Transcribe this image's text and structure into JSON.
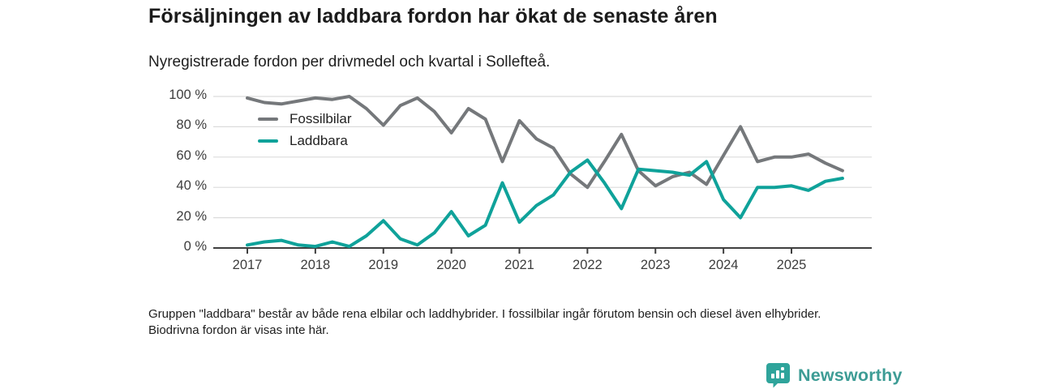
{
  "header": {
    "title": "Försäljningen av laddbara fordon har ökat de senaste åren",
    "subtitle": "Nyregistrerade fordon per drivmedel och kvartal i Sollefteå."
  },
  "chart_data": {
    "type": "line",
    "x_tick_labels": [
      "2017",
      "2018",
      "2019",
      "2020",
      "2021",
      "2022",
      "2023",
      "2024",
      "2025"
    ],
    "y_tick_labels": [
      "0 %",
      "20 %",
      "40 %",
      "60 %",
      "80 %",
      "100 %"
    ],
    "x_unit": "quarter",
    "ylim": [
      0,
      100
    ],
    "grid": "horizontal",
    "legend_position": "top-left-inside",
    "quarters": [
      "2017Q1",
      "2017Q2",
      "2017Q3",
      "2017Q4",
      "2018Q1",
      "2018Q2",
      "2018Q3",
      "2018Q4",
      "2019Q1",
      "2019Q2",
      "2019Q3",
      "2019Q4",
      "2020Q1",
      "2020Q2",
      "2020Q3",
      "2020Q4",
      "2021Q1",
      "2021Q2",
      "2021Q3",
      "2021Q4",
      "2022Q1",
      "2022Q2",
      "2022Q3",
      "2022Q4",
      "2023Q1",
      "2023Q2",
      "2023Q3",
      "2023Q4",
      "2024Q1",
      "2024Q2",
      "2024Q3",
      "2024Q4",
      "2025Q1",
      "2025Q2",
      "2025Q3",
      "2025Q4"
    ],
    "series": [
      {
        "name": "Fossilbilar",
        "color": "#75787b",
        "values": [
          99,
          96,
          95,
          97,
          99,
          98,
          100,
          92,
          81,
          94,
          99,
          90,
          76,
          92,
          85,
          57,
          84,
          72,
          66,
          49,
          40,
          57,
          75,
          51,
          41,
          47,
          50,
          42,
          61,
          80,
          57,
          60,
          60,
          62,
          56,
          51
        ]
      },
      {
        "name": "Laddbara",
        "color": "#0fa29a",
        "values": [
          2,
          4,
          5,
          2,
          1,
          4,
          1,
          8,
          18,
          6,
          2,
          10,
          24,
          8,
          15,
          43,
          17,
          28,
          35,
          50,
          58,
          43,
          26,
          52,
          51,
          50,
          48,
          57,
          32,
          20,
          40,
          40,
          41,
          38,
          44,
          46
        ]
      }
    ]
  },
  "footnote": {
    "text": "Gruppen \"laddbara\" består av både rena elbilar och laddhybrider. I fossilbilar ingår förutom bensin och diesel även elhybrider. Biodrivna fordon är visas inte här."
  },
  "branding": {
    "logo_text": "Newsworthy",
    "logo_color": "#3d9c95",
    "badge_color": "#2fa49b"
  },
  "colors": {
    "grid": "#dcdcdc",
    "axis": "#3f3f3f",
    "title": "#1b1b1b",
    "text": "#1e1e1e"
  }
}
